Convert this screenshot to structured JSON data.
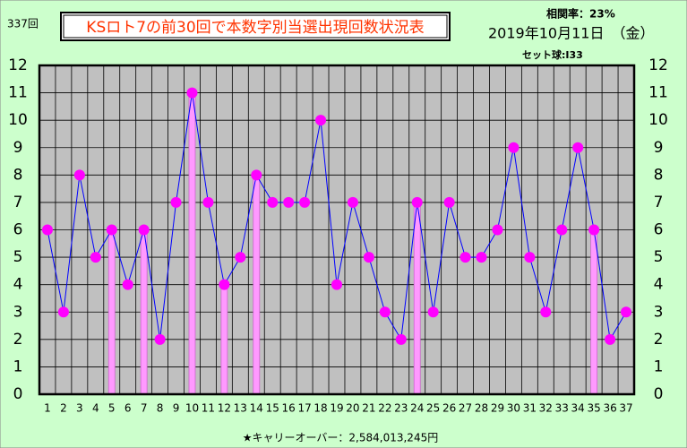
{
  "chart_data": {
    "type": "line",
    "title": "KSロト7の前30回で本数字別当選出現回数状況表",
    "draw_no": "337回",
    "correlation": "相関率：23%",
    "date": "2019年10月11日　（金）",
    "ball_set": "セット球:I33",
    "footer": "★キャリーオーバー：2,584,013,245円",
    "categories": [
      "1",
      "2",
      "3",
      "4",
      "5",
      "6",
      "7",
      "8",
      "9",
      "10",
      "11",
      "12",
      "13",
      "14",
      "15",
      "16",
      "17",
      "18",
      "19",
      "20",
      "21",
      "22",
      "23",
      "24",
      "25",
      "26",
      "27",
      "28",
      "29",
      "30",
      "31",
      "32",
      "33",
      "34",
      "35",
      "36",
      "37"
    ],
    "series": [
      {
        "type": "bar",
        "color": "#ff99ff",
        "values": [
          null,
          null,
          null,
          null,
          6,
          null,
          6,
          null,
          null,
          11,
          null,
          4,
          null,
          8,
          null,
          null,
          null,
          null,
          null,
          null,
          null,
          null,
          null,
          7,
          null,
          null,
          null,
          null,
          null,
          null,
          null,
          null,
          null,
          null,
          6,
          null,
          null
        ]
      },
      {
        "type": "line",
        "color": "#0000ff",
        "marker_color": "#ff00ff",
        "values": [
          6,
          3,
          8,
          5,
          6,
          4,
          6,
          2,
          7,
          11,
          7,
          4,
          5,
          8,
          7,
          7,
          7,
          10,
          4,
          7,
          5,
          3,
          2,
          7,
          3,
          7,
          5,
          5,
          6,
          9,
          5,
          3,
          6,
          9,
          6,
          2,
          3
        ]
      }
    ],
    "ylim": [
      0,
      12
    ],
    "yticks": [
      0,
      1,
      2,
      3,
      4,
      5,
      6,
      7,
      8,
      9,
      10,
      11,
      12
    ],
    "grid": true
  }
}
